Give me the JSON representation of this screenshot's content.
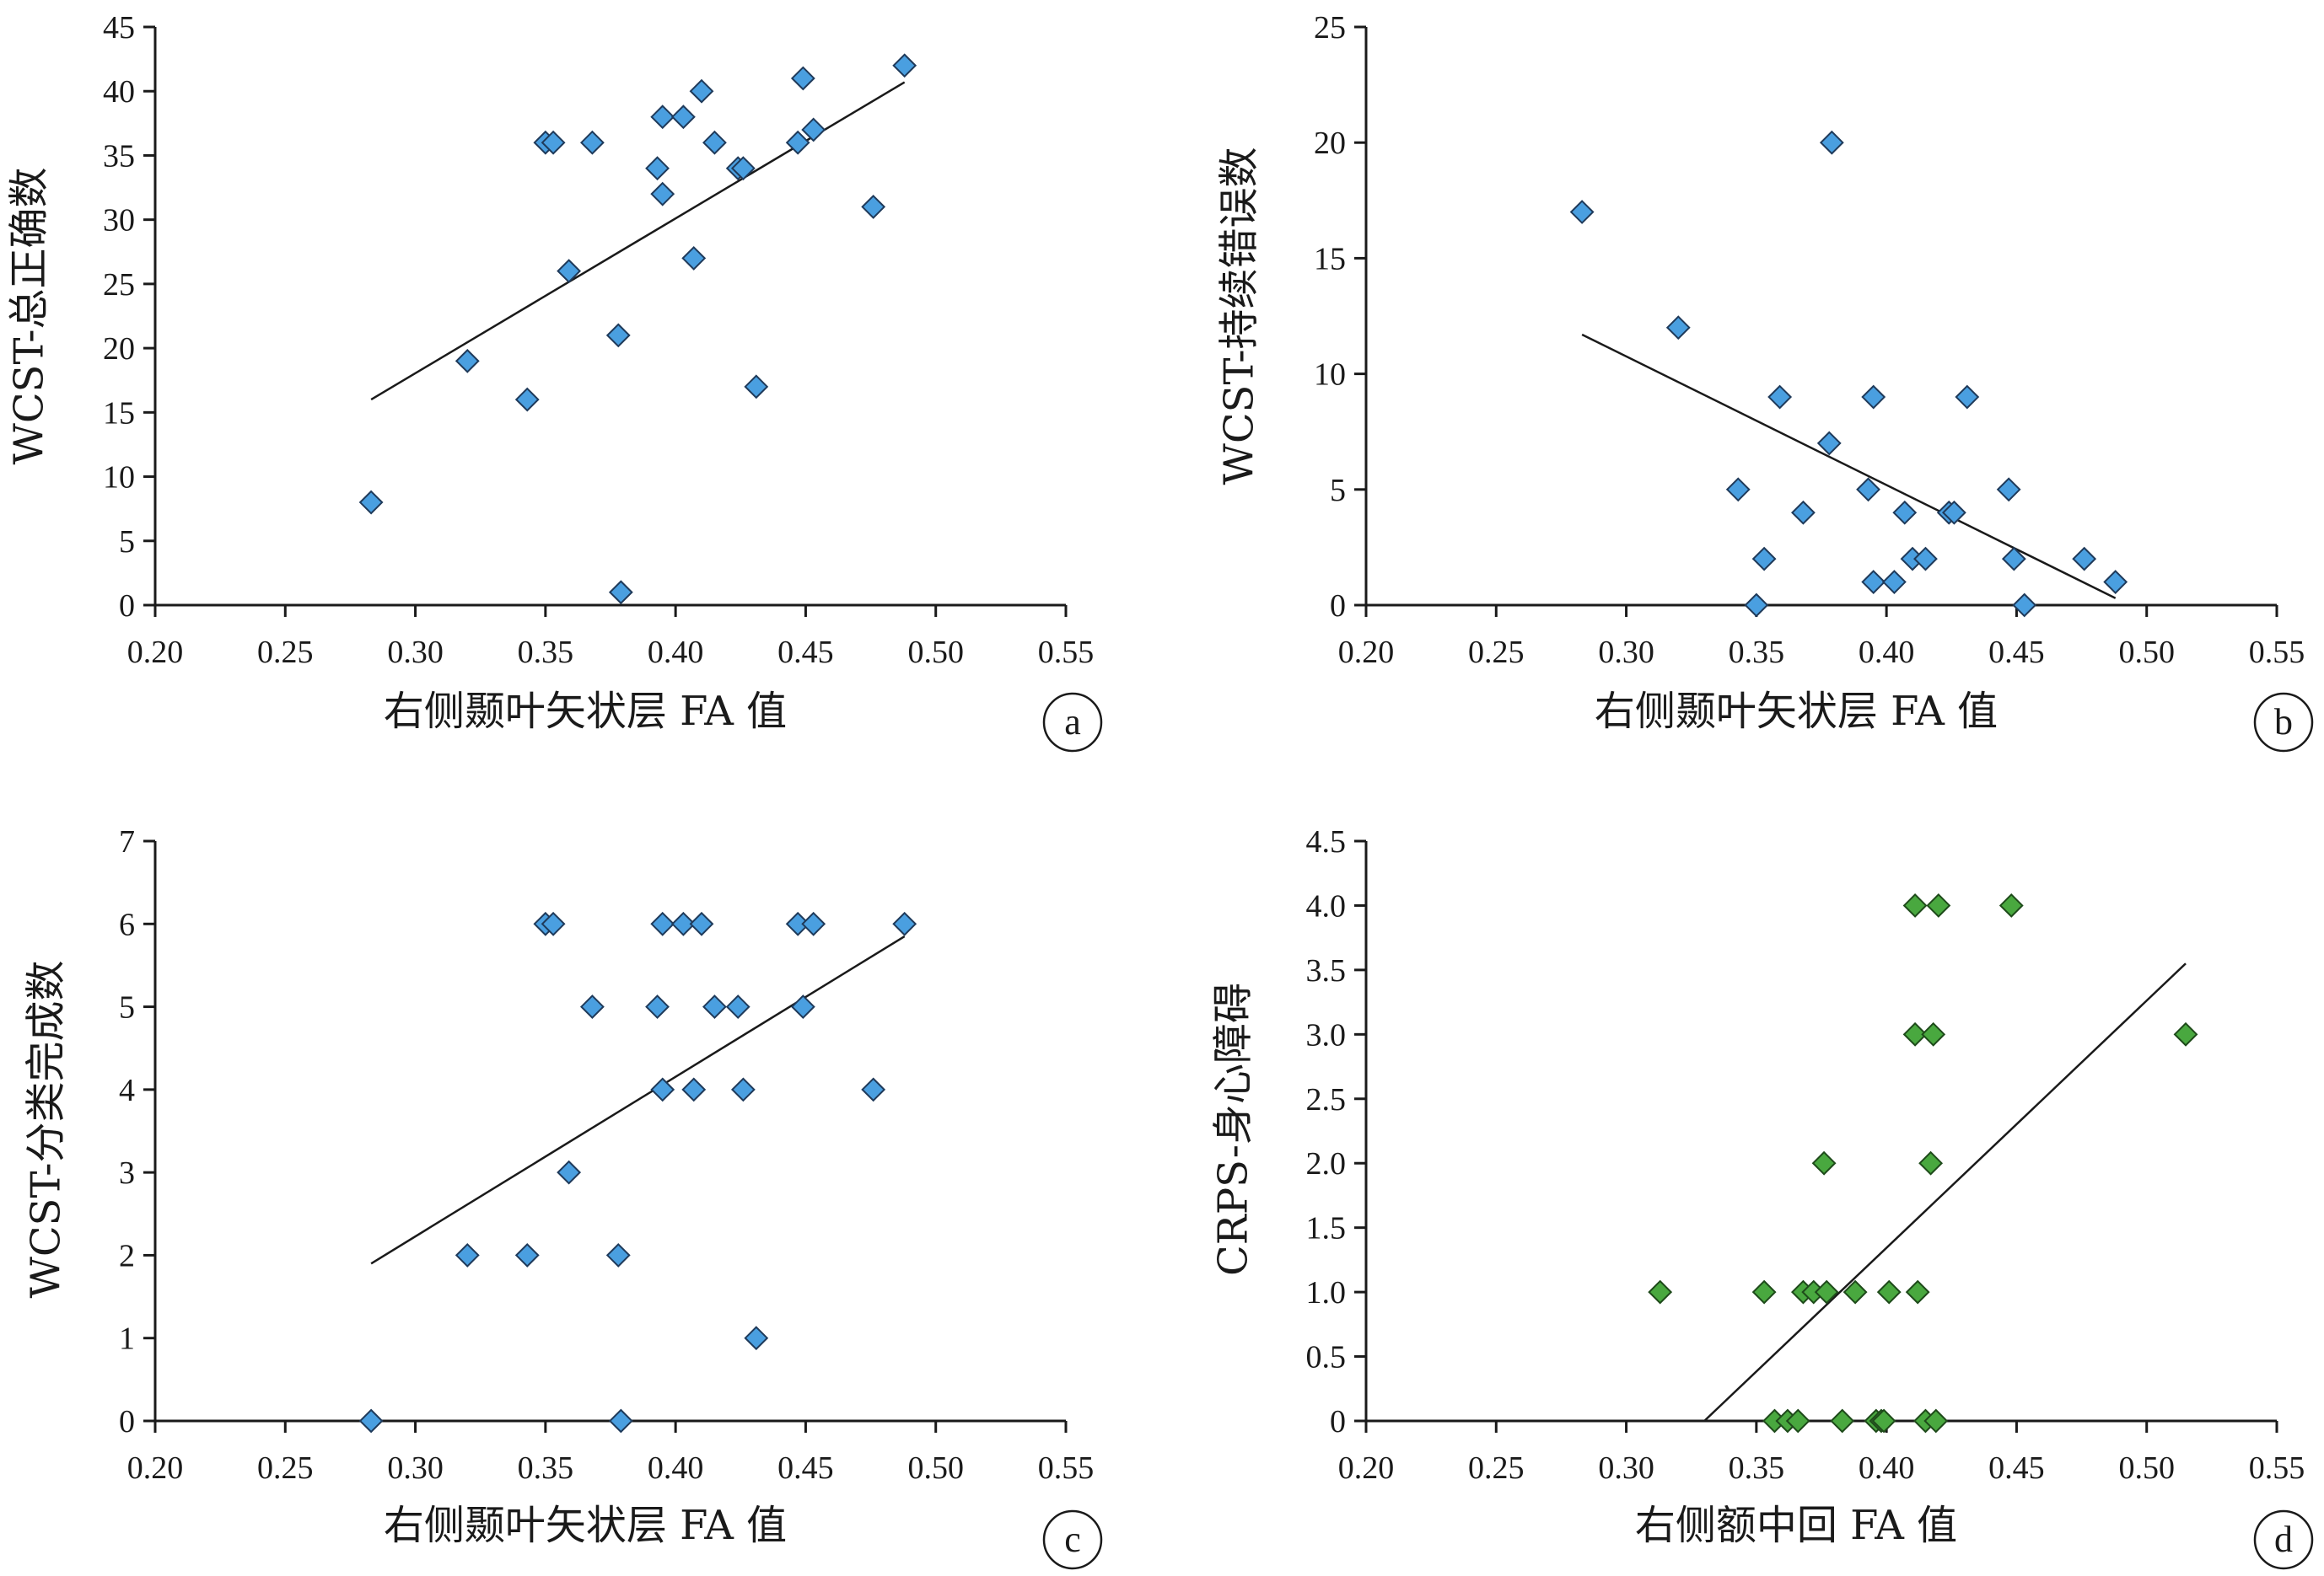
{
  "colors": {
    "blue_marker": "#4a9fe0",
    "green_marker": "#49a83f",
    "marker_stroke": "#1f3a5a",
    "green_stroke": "#1e4a1a",
    "axis": "#1a1a1a"
  },
  "chart_data": [
    {
      "type": "scatter",
      "panel_label": "a",
      "xlabel": "右侧颞叶矢状层 FA 值",
      "ylabel": "WCST-总正确数",
      "xlim": [
        0.2,
        0.55
      ],
      "ylim": [
        0,
        45
      ],
      "xticks": [
        0.2,
        0.25,
        0.3,
        0.35,
        0.4,
        0.45,
        0.5,
        0.55
      ],
      "yticks": [
        0,
        5,
        10,
        15,
        20,
        25,
        30,
        35,
        40,
        45
      ],
      "xtick_labels": [
        "0.20",
        "0.25",
        "0.30",
        "0.35",
        "0.40",
        "0.45",
        "0.50",
        "0.55"
      ],
      "ytick_labels": [
        "0",
        "5",
        "10",
        "15",
        "20",
        "25",
        "30",
        "35",
        "40",
        "45"
      ],
      "marker_color": "blue",
      "points": [
        [
          0.283,
          8
        ],
        [
          0.32,
          19
        ],
        [
          0.343,
          16
        ],
        [
          0.35,
          36
        ],
        [
          0.353,
          36
        ],
        [
          0.359,
          26
        ],
        [
          0.368,
          36
        ],
        [
          0.378,
          21
        ],
        [
          0.379,
          1
        ],
        [
          0.393,
          34
        ],
        [
          0.395,
          38
        ],
        [
          0.395,
          32
        ],
        [
          0.403,
          38
        ],
        [
          0.407,
          27
        ],
        [
          0.41,
          40
        ],
        [
          0.415,
          36
        ],
        [
          0.424,
          34
        ],
        [
          0.426,
          34
        ],
        [
          0.431,
          17
        ],
        [
          0.447,
          36
        ],
        [
          0.449,
          41
        ],
        [
          0.453,
          37
        ],
        [
          0.476,
          31
        ],
        [
          0.488,
          42
        ]
      ],
      "trendline": [
        [
          0.283,
          16
        ],
        [
          0.488,
          40.7
        ]
      ]
    },
    {
      "type": "scatter",
      "panel_label": "b",
      "xlabel": "右侧颞叶矢状层 FA 值",
      "ylabel": "WCST-持续错误数",
      "xlim": [
        0.2,
        0.55
      ],
      "ylim": [
        0,
        25
      ],
      "xticks": [
        0.2,
        0.25,
        0.3,
        0.35,
        0.4,
        0.45,
        0.5,
        0.55
      ],
      "yticks": [
        0,
        5,
        10,
        15,
        20,
        25
      ],
      "xtick_labels": [
        "0.20",
        "0.25",
        "0.30",
        "0.35",
        "0.40",
        "0.45",
        "0.50",
        "0.55"
      ],
      "ytick_labels": [
        "0",
        "5",
        "10",
        "15",
        "20",
        "25"
      ],
      "marker_color": "blue",
      "points": [
        [
          0.283,
          17
        ],
        [
          0.32,
          12
        ],
        [
          0.343,
          5
        ],
        [
          0.35,
          0
        ],
        [
          0.353,
          2
        ],
        [
          0.359,
          9
        ],
        [
          0.368,
          4
        ],
        [
          0.378,
          7
        ],
        [
          0.379,
          20
        ],
        [
          0.393,
          5
        ],
        [
          0.395,
          9
        ],
        [
          0.395,
          1
        ],
        [
          0.403,
          1
        ],
        [
          0.407,
          4
        ],
        [
          0.41,
          2
        ],
        [
          0.415,
          2
        ],
        [
          0.424,
          4
        ],
        [
          0.426,
          4
        ],
        [
          0.431,
          9
        ],
        [
          0.447,
          5
        ],
        [
          0.449,
          2
        ],
        [
          0.453,
          0
        ],
        [
          0.476,
          2
        ],
        [
          0.488,
          1
        ]
      ],
      "trendline": [
        [
          0.283,
          11.7
        ],
        [
          0.488,
          0.3
        ]
      ]
    },
    {
      "type": "scatter",
      "panel_label": "c",
      "xlabel": "右侧颞叶矢状层 FA 值",
      "ylabel": "WCST-分类完成数",
      "xlim": [
        0.2,
        0.55
      ],
      "ylim": [
        0,
        7
      ],
      "xticks": [
        0.2,
        0.25,
        0.3,
        0.35,
        0.4,
        0.45,
        0.5,
        0.55
      ],
      "yticks": [
        0,
        1,
        2,
        3,
        4,
        5,
        6,
        7
      ],
      "xtick_labels": [
        "0.20",
        "0.25",
        "0.30",
        "0.35",
        "0.40",
        "0.45",
        "0.50",
        "0.55"
      ],
      "ytick_labels": [
        "0",
        "1",
        "2",
        "3",
        "4",
        "5",
        "6",
        "7"
      ],
      "marker_color": "blue",
      "points": [
        [
          0.283,
          0
        ],
        [
          0.32,
          2
        ],
        [
          0.343,
          2
        ],
        [
          0.35,
          6
        ],
        [
          0.353,
          6
        ],
        [
          0.359,
          3
        ],
        [
          0.368,
          5
        ],
        [
          0.378,
          2
        ],
        [
          0.379,
          0
        ],
        [
          0.393,
          5
        ],
        [
          0.395,
          6
        ],
        [
          0.395,
          4
        ],
        [
          0.403,
          6
        ],
        [
          0.407,
          4
        ],
        [
          0.41,
          6
        ],
        [
          0.415,
          5
        ],
        [
          0.424,
          5
        ],
        [
          0.426,
          4
        ],
        [
          0.431,
          1
        ],
        [
          0.447,
          6
        ],
        [
          0.449,
          5
        ],
        [
          0.453,
          6
        ],
        [
          0.476,
          4
        ],
        [
          0.488,
          6
        ]
      ],
      "trendline": [
        [
          0.283,
          1.9
        ],
        [
          0.488,
          5.85
        ]
      ]
    },
    {
      "type": "scatter",
      "panel_label": "d",
      "xlabel": "右侧额中回 FA 值",
      "ylabel": "CRPS-身心障碍",
      "xlim": [
        0.2,
        0.55
      ],
      "ylim": [
        0,
        4.5
      ],
      "xticks": [
        0.2,
        0.25,
        0.3,
        0.35,
        0.4,
        0.45,
        0.5,
        0.55
      ],
      "yticks": [
        0,
        0.5,
        1.0,
        1.5,
        2.0,
        2.5,
        3.0,
        3.5,
        4.0,
        4.5
      ],
      "xtick_labels": [
        "0.20",
        "0.25",
        "0.30",
        "0.35",
        "0.40",
        "0.45",
        "0.50",
        "0.55"
      ],
      "ytick_labels": [
        "0",
        "0.5",
        "1.0",
        "1.5",
        "2.0",
        "2.5",
        "3.0",
        "3.5",
        "4.0",
        "4.5"
      ],
      "marker_color": "green",
      "points": [
        [
          0.313,
          1
        ],
        [
          0.353,
          1
        ],
        [
          0.357,
          0
        ],
        [
          0.362,
          0
        ],
        [
          0.366,
          0
        ],
        [
          0.368,
          1
        ],
        [
          0.372,
          1
        ],
        [
          0.376,
          2
        ],
        [
          0.377,
          1
        ],
        [
          0.383,
          0
        ],
        [
          0.388,
          1
        ],
        [
          0.396,
          0
        ],
        [
          0.398,
          0
        ],
        [
          0.399,
          0
        ],
        [
          0.401,
          1
        ],
        [
          0.411,
          4
        ],
        [
          0.411,
          3
        ],
        [
          0.412,
          1
        ],
        [
          0.415,
          0
        ],
        [
          0.417,
          2
        ],
        [
          0.418,
          3
        ],
        [
          0.419,
          0
        ],
        [
          0.42,
          4
        ],
        [
          0.448,
          4
        ],
        [
          0.515,
          3
        ]
      ],
      "trendline": [
        [
          0.33,
          0
        ],
        [
          0.515,
          3.55
        ]
      ]
    }
  ]
}
